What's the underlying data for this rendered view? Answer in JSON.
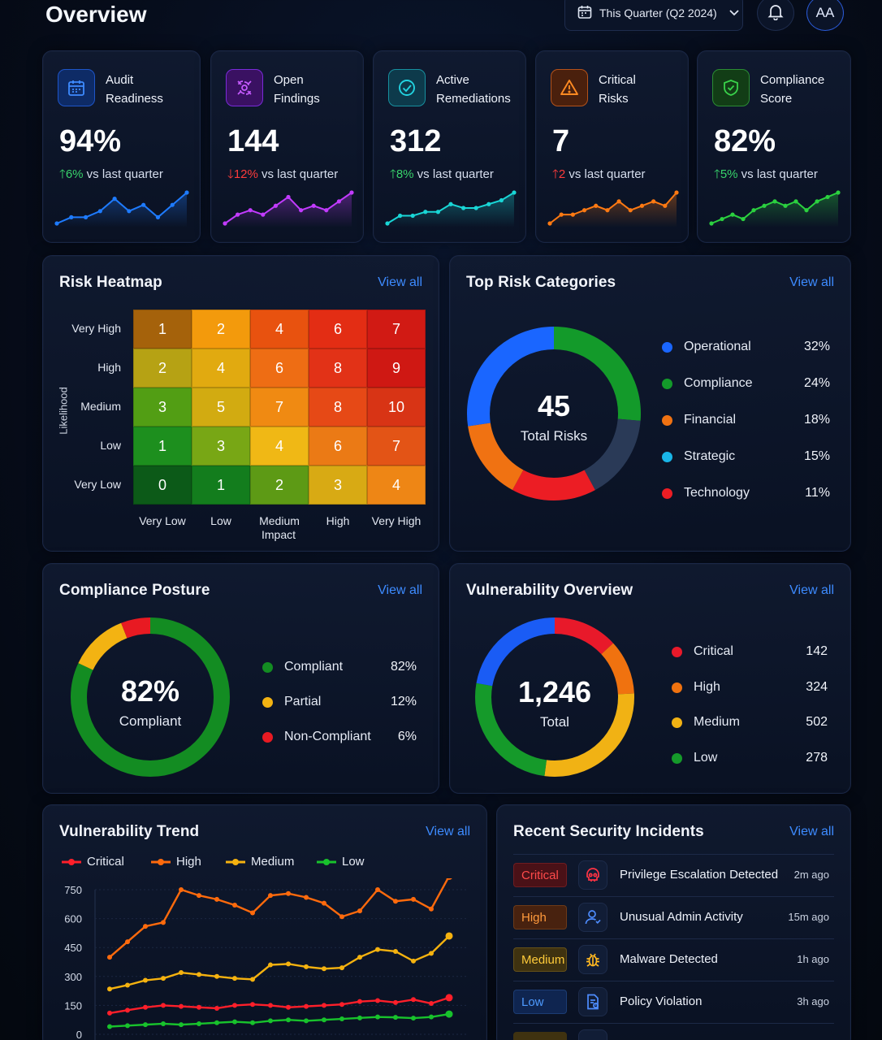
{
  "header": {
    "title": "Overview",
    "period_label": "This Quarter (Q2 2024)",
    "avatar_initials": "AA"
  },
  "kpis": [
    {
      "label_line1": "Audit",
      "label_line2": "Readiness",
      "value": "94%",
      "delta": "6%",
      "direction": "up",
      "suffix": "vs last quarter",
      "color": "#1e7bff",
      "icon": "calendar-icon",
      "spark": [
        3,
        4,
        4,
        5,
        7,
        5,
        6,
        4,
        6,
        8
      ]
    },
    {
      "label_line1": "Open",
      "label_line2": "Findings",
      "value": "144",
      "delta": "12%",
      "direction": "down",
      "suffix": "vs last quarter",
      "color": "#c23bff",
      "icon": "bug-icon",
      "spark": [
        2,
        4,
        5,
        4,
        6,
        8,
        5,
        6,
        5,
        7,
        9
      ]
    },
    {
      "label_line1": "Active",
      "label_line2": "Remediations",
      "value": "312",
      "delta": "8%",
      "direction": "up",
      "suffix": "vs last quarter",
      "color": "#19d6d6",
      "icon": "check-circle-icon",
      "spark": [
        3,
        5,
        5,
        6,
        6,
        8,
        7,
        7,
        8,
        9,
        11
      ]
    },
    {
      "label_line1": "Critical",
      "label_line2": "Risks",
      "value": "7",
      "delta": "2",
      "direction": "up-bad",
      "suffix": "vs last quarter",
      "color": "#ff7a12",
      "icon": "warning-icon",
      "spark": [
        2,
        4,
        4,
        5,
        6,
        5,
        7,
        5,
        6,
        7,
        6,
        9
      ]
    },
    {
      "label_line1": "Compliance",
      "label_line2": "Score",
      "value": "82%",
      "delta": "5%",
      "direction": "up",
      "suffix": "vs last quarter",
      "color": "#2bd13f",
      "icon": "shield-check-icon",
      "spark": [
        2,
        3,
        4,
        3,
        5,
        6,
        7,
        6,
        7,
        5,
        7,
        8,
        9
      ]
    }
  ],
  "heatmap": {
    "title": "Risk Heatmap",
    "view_all": "View all",
    "y_axis_label": "Likelihood",
    "x_axis_label": "Impact",
    "rows": [
      "Very High",
      "High",
      "Medium",
      "Low",
      "Very Low"
    ],
    "cols": [
      "Very Low",
      "Low",
      "Medium",
      "High",
      "Very High"
    ],
    "values": [
      [
        1,
        2,
        4,
        6,
        7
      ],
      [
        2,
        4,
        6,
        8,
        9
      ],
      [
        3,
        5,
        7,
        8,
        10
      ],
      [
        1,
        3,
        4,
        6,
        7
      ],
      [
        0,
        1,
        2,
        3,
        4
      ]
    ],
    "colors": [
      [
        "#a5620b",
        "#f39a0c",
        "#e8520f",
        "#e32d14",
        "#d11a14"
      ],
      [
        "#b6a214",
        "#e1aa10",
        "#ee6d14",
        "#e23217",
        "#cf1813"
      ],
      [
        "#529e14",
        "#d2ab11",
        "#f08a12",
        "#e64916",
        "#d83415"
      ],
      [
        "#1d8f1e",
        "#78a715",
        "#f0b815",
        "#eb7a15",
        "#e35416"
      ],
      [
        "#0c5a18",
        "#137d1d",
        "#5d9a15",
        "#d8aa14",
        "#ee8615"
      ]
    ]
  },
  "risk_categories": {
    "title": "Top Risk Categories",
    "view_all": "View all",
    "total_value": "45",
    "total_label": "Total Risks",
    "items": [
      {
        "name": "Operational",
        "pct": "32%",
        "color": "#1a66ff"
      },
      {
        "name": "Compliance",
        "pct": "24%",
        "color": "#139a2a"
      },
      {
        "name": "Financial",
        "pct": "18%",
        "color": "#f07212"
      },
      {
        "name": "Strategic",
        "pct": "15%",
        "color": "#19b5e8"
      },
      {
        "name": "Technology",
        "pct": "11%",
        "color": "#ec1d24"
      }
    ]
  },
  "compliance": {
    "title": "Compliance Posture",
    "view_all": "View all",
    "center_value": "82%",
    "center_label": "Compliant",
    "items": [
      {
        "name": "Compliant",
        "pct": "82%",
        "value": 82,
        "color": "#138c22"
      },
      {
        "name": "Partial",
        "pct": "12%",
        "value": 12,
        "color": "#f3b312"
      },
      {
        "name": "Non-Compliant",
        "pct": "6%",
        "value": 6,
        "color": "#e81a22"
      }
    ]
  },
  "vulnerabilities": {
    "title": "Vulnerability Overview",
    "view_all": "View all",
    "center_value": "1,246",
    "center_label": "Total",
    "items": [
      {
        "name": "Critical",
        "count": "142",
        "color": "#e8192a"
      },
      {
        "name": "High",
        "count": "324",
        "color": "#f0720f"
      },
      {
        "name": "Medium",
        "count": "502",
        "color": "#f1b214"
      },
      {
        "name": "Low",
        "count": "278",
        "color": "#159a2a"
      }
    ],
    "ring_colors": {
      "blue": "#1a5cf5"
    }
  },
  "trend": {
    "title": "Vulnerability Trend",
    "view_all": "View all",
    "chart_data": {
      "type": "line",
      "y_ticks": [
        "750",
        "600",
        "450",
        "300",
        "150",
        "0"
      ],
      "ylim": [
        0,
        750
      ],
      "x": [
        1,
        2,
        3,
        4,
        5,
        6,
        7,
        8,
        9,
        10,
        11,
        12,
        13,
        14,
        15,
        16,
        17,
        18,
        19,
        20
      ],
      "series": [
        {
          "name": "Critical",
          "color": "#ff1f2a",
          "values": [
            110,
            125,
            140,
            150,
            145,
            140,
            135,
            150,
            155,
            150,
            140,
            145,
            150,
            155,
            170,
            175,
            165,
            180,
            160,
            190
          ]
        },
        {
          "name": "High",
          "color": "#ff6a0c",
          "values": [
            400,
            480,
            560,
            580,
            750,
            720,
            700,
            670,
            630,
            720,
            730,
            710,
            680,
            610,
            640,
            750,
            690,
            700,
            650,
            820
          ]
        },
        {
          "name": "Medium",
          "color": "#f5b20f",
          "values": [
            235,
            255,
            280,
            290,
            320,
            310,
            300,
            290,
            285,
            360,
            365,
            350,
            340,
            345,
            400,
            440,
            430,
            380,
            420,
            510
          ]
        },
        {
          "name": "Low",
          "color": "#18c22c",
          "values": [
            40,
            45,
            50,
            55,
            50,
            55,
            60,
            65,
            60,
            70,
            75,
            70,
            75,
            80,
            85,
            90,
            88,
            84,
            90,
            105
          ]
        }
      ]
    }
  },
  "incidents": {
    "title": "Recent Security Incidents",
    "view_all": "View all",
    "items": [
      {
        "severity": "Critical",
        "title": "Privilege Escalation Detected",
        "time": "2m ago",
        "icon": "skull-icon",
        "fg": "#ff4a4a",
        "bg": "#4a1117",
        "icon_color": "#ff3344"
      },
      {
        "severity": "High",
        "title": "Unusual Admin Activity",
        "time": "15m ago",
        "icon": "user-icon",
        "fg": "#ff9a3c",
        "bg": "#48220f",
        "icon_color": "#4e8dff"
      },
      {
        "severity": "Medium",
        "title": "Malware Detected",
        "time": "1h ago",
        "icon": "bug-icon",
        "fg": "#ffcb3a",
        "bg": "#3f3210",
        "icon_color": "#ffb820"
      },
      {
        "severity": "Low",
        "title": "Policy Violation",
        "time": "3h ago",
        "icon": "document-icon",
        "fg": "#4e9bff",
        "bg": "#0f2550",
        "icon_color": "#4e8dff"
      }
    ]
  }
}
